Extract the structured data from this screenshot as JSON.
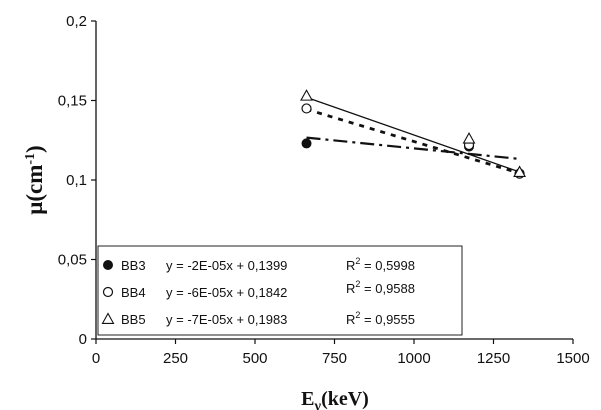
{
  "chart_data": {
    "type": "scatter",
    "xlabel": "Eγ(keV)",
    "ylabel": "μ(cm⁻¹)",
    "xlim": [
      0,
      1500
    ],
    "ylim": [
      0,
      0.2
    ],
    "x_ticks": [
      0,
      250,
      500,
      750,
      1000,
      1250,
      1500
    ],
    "x_tick_labels": [
      "0",
      "250",
      "500",
      "750",
      "1000",
      "1250",
      "1500"
    ],
    "y_ticks": [
      0,
      0.05,
      0.1,
      0.15,
      0.2
    ],
    "y_tick_labels": [
      "0",
      "0,05",
      "0,1",
      "0,15",
      "0,2"
    ],
    "grid": false,
    "legend_position": "bottom-left",
    "series": [
      {
        "name": "BB3",
        "marker": "filled-circle",
        "x": [
          662,
          1173,
          1332
        ],
        "y": [
          0.123,
          0.121,
          0.104
        ],
        "trendline": {
          "style": "long-dash",
          "equation": "y = -2E-05x + 0,1399",
          "r2_label": "R",
          "r2_value": " = 0,5998",
          "slope": -2e-05,
          "intercept": 0.1399
        }
      },
      {
        "name": "BB4",
        "marker": "open-circle",
        "x": [
          662,
          1173,
          1332
        ],
        "y": [
          0.145,
          0.122,
          0.104
        ],
        "trendline": {
          "style": "dotted",
          "equation": "y = -6E-05x + 0,1842",
          "r2_label": "R",
          "r2_value": " = 0,9588",
          "slope": -6e-05,
          "intercept": 0.1842
        }
      },
      {
        "name": "BB5",
        "marker": "open-triangle",
        "x": [
          662,
          1173,
          1332
        ],
        "y": [
          0.153,
          0.126,
          0.105
        ],
        "trendline": {
          "style": "solid",
          "equation": "y = -7E-05x + 0,1983",
          "r2_label": "R",
          "r2_value": " = 0,9555",
          "slope": -7e-05,
          "intercept": 0.1983
        }
      }
    ]
  }
}
